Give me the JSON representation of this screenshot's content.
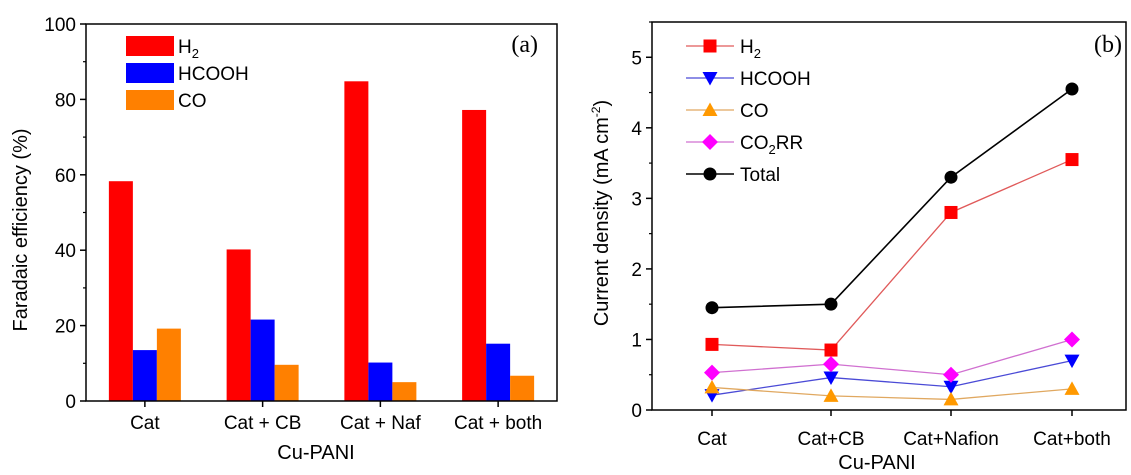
{
  "chart_data": [
    {
      "type": "bar",
      "panel_label": "(a)",
      "xlabel": "Cu-PANI",
      "ylabel": "Faradaic efficiency (%)",
      "ylim": [
        0,
        100
      ],
      "yticks": [
        0,
        20,
        40,
        60,
        80,
        100
      ],
      "categories": [
        "Cat",
        "Cat + CB",
        "Cat + Naf",
        "Cat + both"
      ],
      "series": [
        {
          "name": "H",
          "sub": "2",
          "color": "#ff0000",
          "values": [
            58.3,
            40.2,
            84.8,
            77.2
          ]
        },
        {
          "name": "HCOOH",
          "sub": "",
          "color": "#0000ff",
          "values": [
            13.5,
            21.6,
            10.2,
            15.2
          ]
        },
        {
          "name": "CO",
          "sub": "",
          "color": "#ff8000",
          "values": [
            19.2,
            9.6,
            5.0,
            6.7
          ]
        }
      ],
      "legend_position": "top-left",
      "grid": false
    },
    {
      "type": "line",
      "panel_label": "(b)",
      "xlabel": "Cu-PANI",
      "ylabel": "Current density (mA cm",
      "ylabel_sup": "-2",
      "ylabel_end": ")",
      "ylim": [
        0,
        5.5
      ],
      "yticks": [
        0,
        1,
        2,
        3,
        4,
        5
      ],
      "categories": [
        "Cat",
        "Cat+CB",
        "Cat+Nafion",
        "Cat+both"
      ],
      "series": [
        {
          "name": "H",
          "sub": "2",
          "post": "",
          "marker": "square",
          "color": "#ff0000",
          "line_color": "#e05a5a",
          "values": [
            0.93,
            0.85,
            2.8,
            3.55
          ]
        },
        {
          "name": "HCOOH",
          "sub": "",
          "post": "",
          "marker": "triangle-down",
          "color": "#0000ff",
          "line_color": "#4a4ad6",
          "values": [
            0.21,
            0.46,
            0.33,
            0.7
          ]
        },
        {
          "name": "CO",
          "sub": "",
          "post": "",
          "marker": "triangle-up",
          "color": "#ff9900",
          "line_color": "#e0a860",
          "values": [
            0.32,
            0.2,
            0.15,
            0.3
          ]
        },
        {
          "name": "CO",
          "sub": "2",
          "post": "RR",
          "marker": "diamond",
          "color": "#ff00ff",
          "line_color": "#d070d0",
          "values": [
            0.53,
            0.65,
            0.5,
            1.0
          ]
        },
        {
          "name": "Total",
          "sub": "",
          "post": "",
          "marker": "circle",
          "color": "#000000",
          "line_color": "#000000",
          "values": [
            1.45,
            1.5,
            3.3,
            4.55
          ]
        }
      ],
      "legend_position": "top-left",
      "grid": false
    }
  ]
}
